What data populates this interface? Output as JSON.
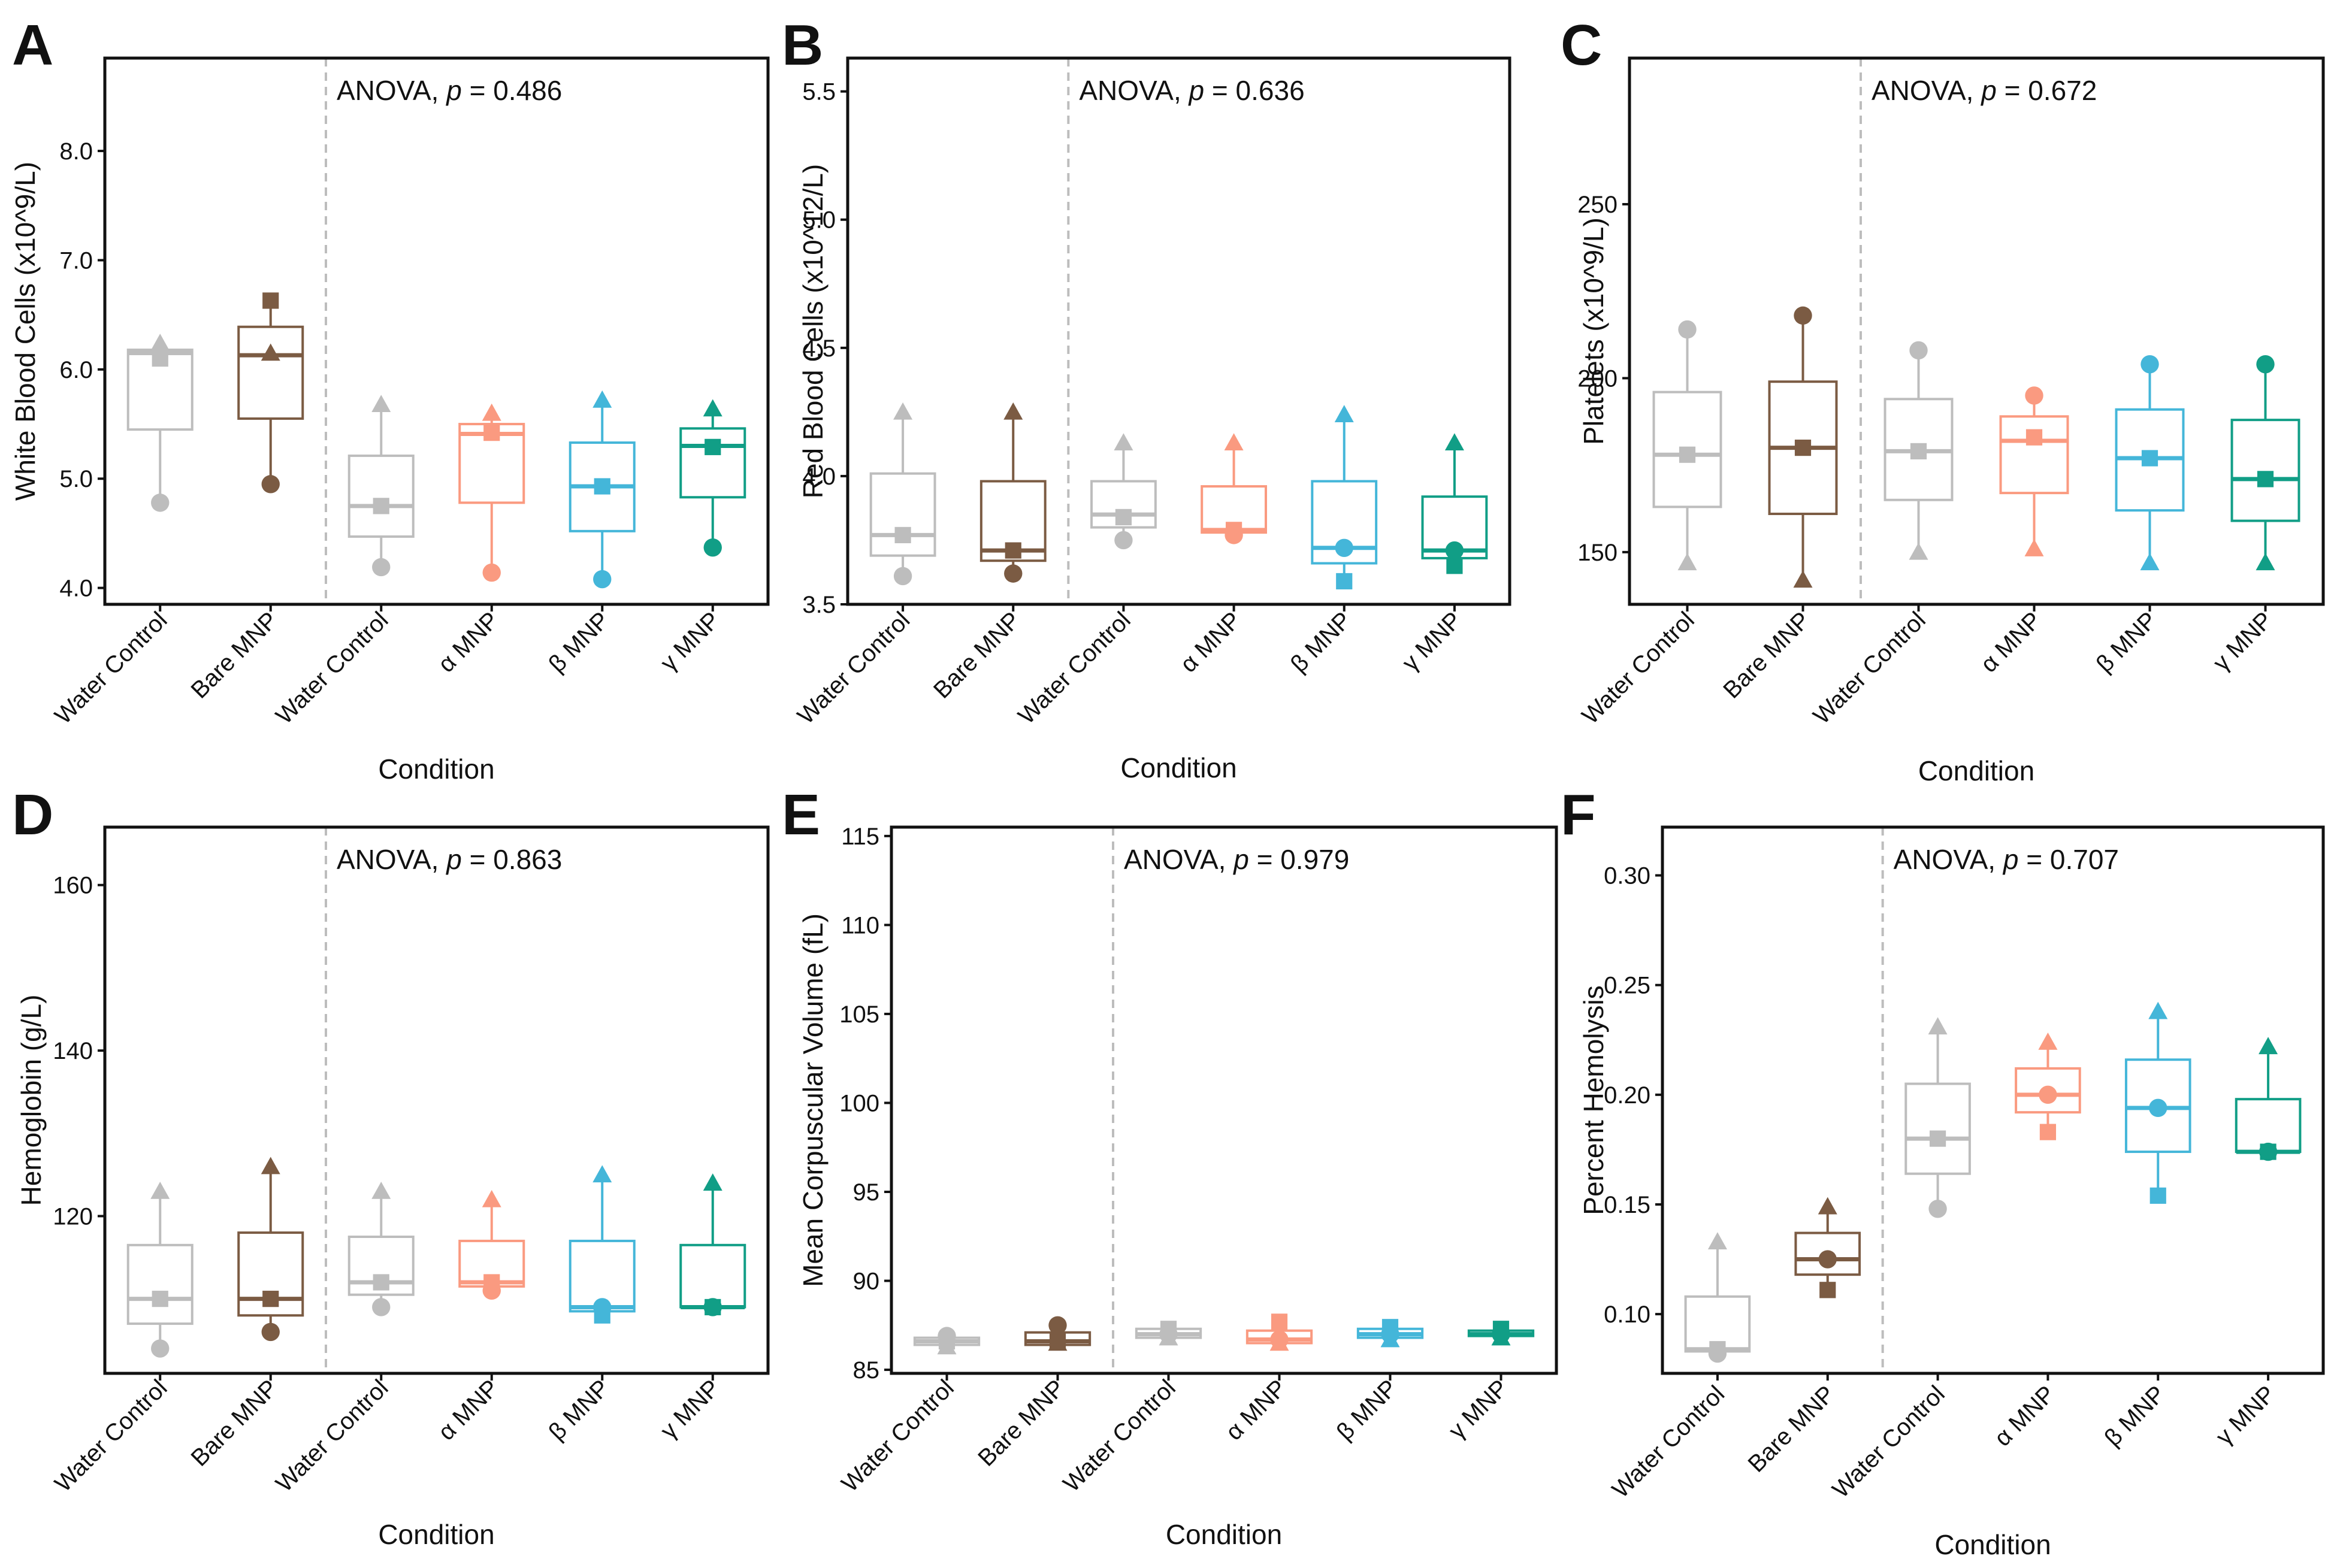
{
  "figure": {
    "x_axis_title": "Condition",
    "divider_style": "dashed grey line after second group",
    "colors": {
      "water_control": "#BDBDBD",
      "bare_mnp": "#7B5B43",
      "alpha_mnp": "#FA9A80",
      "beta_mnp": "#44B6D9",
      "gamma_mnp": "#119E86",
      "divider": "#BDBDBD"
    },
    "marker_shapes": [
      "triangle",
      "square",
      "circle"
    ]
  },
  "chart_data": [
    {
      "panel": "A",
      "type": "box",
      "anova_prefix": "ANOVA, ",
      "anova_p_symbol": "p",
      "anova_p_value": " = 0.486",
      "ylabel": "White Blood Cells (x10^9/L)",
      "xlabel": "Condition",
      "categories": [
        "Water Control",
        "Bare MNP",
        "Water Control",
        "α MNP",
        "β MNP",
        "γ MNP"
      ],
      "yticks": [
        4.0,
        5.0,
        6.0,
        7.0,
        8.0
      ],
      "ytick_labels": [
        "4.0",
        "5.0",
        "6.0",
        "7.0",
        "8.0"
      ],
      "ylim": [
        3.85,
        8.85
      ],
      "boxes": [
        {
          "q1": 5.45,
          "median": 6.15,
          "q3": 6.18,
          "lo": 4.8,
          "hi": 6.18,
          "triangle": 6.24,
          "square": 6.1,
          "circle": 4.78
        },
        {
          "q1": 5.55,
          "median": 6.13,
          "q3": 6.39,
          "lo": 4.97,
          "hi": 6.64,
          "triangle": 6.15,
          "square": 6.63,
          "circle": 4.95
        },
        {
          "q1": 4.47,
          "median": 4.75,
          "q3": 5.21,
          "lo": 4.2,
          "hi": 5.68,
          "triangle": 5.68,
          "square": 4.75,
          "circle": 4.19
        },
        {
          "q1": 4.78,
          "median": 5.41,
          "q3": 5.5,
          "lo": 4.16,
          "hi": 5.62,
          "triangle": 5.6,
          "square": 5.42,
          "circle": 4.14
        },
        {
          "q1": 4.52,
          "median": 4.93,
          "q3": 5.33,
          "lo": 4.1,
          "hi": 5.71,
          "triangle": 5.72,
          "square": 4.93,
          "circle": 4.08
        },
        {
          "q1": 4.83,
          "median": 5.3,
          "q3": 5.46,
          "lo": 4.38,
          "hi": 5.63,
          "triangle": 5.64,
          "square": 5.29,
          "circle": 4.37
        }
      ]
    },
    {
      "panel": "B",
      "type": "box",
      "anova_prefix": "ANOVA, ",
      "anova_p_symbol": "p",
      "anova_p_value": " = 0.636",
      "ylabel": "Red Blood Cells (x10^12/L)",
      "xlabel": "Condition",
      "categories": [
        "Water Control",
        "Bare MNP",
        "Water Control",
        "α MNP",
        "β MNP",
        "γ MNP"
      ],
      "yticks": [
        3.5,
        4.0,
        4.5,
        5.0,
        5.5
      ],
      "ytick_labels": [
        "3.5",
        "4.0",
        "4.5",
        "5.0",
        "5.5"
      ],
      "ylim": [
        3.5,
        5.63
      ],
      "boxes": [
        {
          "q1": 3.69,
          "median": 3.77,
          "q3": 4.01,
          "lo": 3.62,
          "hi": 4.25,
          "triangle": 4.25,
          "square": 3.77,
          "circle": 3.61
        },
        {
          "q1": 3.67,
          "median": 3.71,
          "q3": 3.98,
          "lo": 3.63,
          "hi": 4.24,
          "triangle": 4.25,
          "square": 3.71,
          "circle": 3.62
        },
        {
          "q1": 3.8,
          "median": 3.85,
          "q3": 3.98,
          "lo": 3.75,
          "hi": 4.12,
          "triangle": 4.13,
          "square": 3.84,
          "circle": 3.75
        },
        {
          "q1": 3.78,
          "median": 3.79,
          "q3": 3.96,
          "lo": 3.78,
          "hi": 4.12,
          "triangle": 4.13,
          "square": 3.79,
          "circle": 3.77
        },
        {
          "q1": 3.66,
          "median": 3.72,
          "q3": 3.98,
          "lo": 3.6,
          "hi": 4.23,
          "triangle": 4.24,
          "square": 3.59,
          "circle": 3.72
        },
        {
          "q1": 3.68,
          "median": 3.71,
          "q3": 3.92,
          "lo": 3.66,
          "hi": 4.12,
          "triangle": 4.13,
          "square": 3.65,
          "circle": 3.71
        }
      ]
    },
    {
      "panel": "C",
      "type": "box",
      "anova_prefix": "ANOVA, ",
      "anova_p_symbol": "p",
      "anova_p_value": " = 0.672",
      "ylabel": "Platelets (x10^9/L)",
      "xlabel": "Condition",
      "categories": [
        "Water Control",
        "Bare MNP",
        "Water Control",
        "α MNP",
        "β MNP",
        "γ MNP"
      ],
      "yticks": [
        150,
        200,
        250
      ],
      "ytick_labels": [
        "150",
        "200",
        "250"
      ],
      "ylim": [
        135,
        292
      ],
      "boxes": [
        {
          "q1": 163,
          "median": 178,
          "q3": 196,
          "lo": 147,
          "hi": 214,
          "triangle": 147,
          "square": 178,
          "circle": 214
        },
        {
          "q1": 161,
          "median": 180,
          "q3": 199,
          "lo": 142,
          "hi": 218,
          "triangle": 142,
          "square": 180,
          "circle": 218
        },
        {
          "q1": 165,
          "median": 179,
          "q3": 194,
          "lo": 150,
          "hi": 208,
          "triangle": 150,
          "square": 179,
          "circle": 208
        },
        {
          "q1": 167,
          "median": 182,
          "q3": 189,
          "lo": 151,
          "hi": 195,
          "triangle": 151,
          "square": 183,
          "circle": 195
        },
        {
          "q1": 162,
          "median": 177,
          "q3": 191,
          "lo": 147,
          "hi": 204,
          "triangle": 147,
          "square": 177,
          "circle": 204
        },
        {
          "q1": 159,
          "median": 171,
          "q3": 188,
          "lo": 147,
          "hi": 204,
          "triangle": 147,
          "square": 171,
          "circle": 204
        }
      ]
    },
    {
      "panel": "D",
      "type": "box",
      "anova_prefix": "ANOVA, ",
      "anova_p_symbol": "p",
      "anova_p_value": " = 0.863",
      "ylabel": "Hemoglobin (g/L)",
      "xlabel": "Condition",
      "categories": [
        "Water Control",
        "Bare MNP",
        "Water Control",
        "α MNP",
        "β MNP",
        "γ MNP"
      ],
      "yticks": [
        120,
        140,
        160
      ],
      "ytick_labels": [
        "120",
        "140",
        "160"
      ],
      "ylim": [
        101,
        167
      ],
      "boxes": [
        {
          "q1": 107,
          "median": 110,
          "q3": 116.5,
          "lo": 104,
          "hi": 123,
          "triangle": 123,
          "square": 110,
          "circle": 104
        },
        {
          "q1": 108,
          "median": 110,
          "q3": 118,
          "lo": 106,
          "hi": 126,
          "triangle": 126,
          "square": 110,
          "circle": 106
        },
        {
          "q1": 110.5,
          "median": 112,
          "q3": 117.5,
          "lo": 109,
          "hi": 123,
          "triangle": 123,
          "square": 112,
          "circle": 109
        },
        {
          "q1": 111.5,
          "median": 112,
          "q3": 117,
          "lo": 111,
          "hi": 122,
          "triangle": 122,
          "square": 112,
          "circle": 111
        },
        {
          "q1": 108.5,
          "median": 109,
          "q3": 117,
          "lo": 108,
          "hi": 125,
          "triangle": 125,
          "square": 108,
          "circle": 109
        },
        {
          "q1": 109,
          "median": 109,
          "q3": 116.5,
          "lo": 109,
          "hi": 124,
          "triangle": 124,
          "square": 109,
          "circle": 109
        }
      ]
    },
    {
      "panel": "E",
      "type": "box",
      "anova_prefix": "ANOVA, ",
      "anova_p_symbol": "p",
      "anova_p_value": " = 0.979",
      "ylabel": "Mean Corpuscular Volume (fL)",
      "xlabel": "Condition",
      "categories": [
        "Water Control",
        "Bare MNP",
        "Water Control",
        "α MNP",
        "β MNP",
        "γ MNP"
      ],
      "yticks": [
        85,
        90,
        95,
        100,
        105,
        110,
        115
      ],
      "ytick_labels": [
        "85",
        "90",
        "95",
        "100",
        "105",
        "110",
        "115"
      ],
      "ylim": [
        84.8,
        115.5
      ],
      "boxes": [
        {
          "q1": 86.4,
          "median": 86.6,
          "q3": 86.8,
          "lo": 86.2,
          "hi": 87.0,
          "triangle": 86.3,
          "square": 86.6,
          "circle": 86.9
        },
        {
          "q1": 86.4,
          "median": 86.6,
          "q3": 87.1,
          "lo": 86.4,
          "hi": 87.5,
          "triangle": 86.5,
          "square": 86.6,
          "circle": 87.5
        },
        {
          "q1": 86.8,
          "median": 87.0,
          "q3": 87.3,
          "lo": 86.7,
          "hi": 87.4,
          "triangle": 86.8,
          "square": 87.3,
          "circle": 87.0
        },
        {
          "q1": 86.5,
          "median": 86.7,
          "q3": 87.2,
          "lo": 86.4,
          "hi": 87.7,
          "triangle": 86.5,
          "square": 87.7,
          "circle": 86.7
        },
        {
          "q1": 86.8,
          "median": 87.0,
          "q3": 87.3,
          "lo": 86.6,
          "hi": 87.4,
          "triangle": 86.7,
          "square": 87.4,
          "circle": 87.0
        },
        {
          "q1": 86.9,
          "median": 87.0,
          "q3": 87.2,
          "lo": 86.8,
          "hi": 87.3,
          "triangle": 86.8,
          "square": 87.3,
          "circle": 87.0
        }
      ]
    },
    {
      "panel": "F",
      "type": "box",
      "anova_prefix": "ANOVA, ",
      "anova_p_symbol": "p",
      "anova_p_value": " = 0.707",
      "ylabel": "Percent Hemolysis",
      "xlabel": "Condition",
      "categories": [
        "Water Control",
        "Bare MNP",
        "Water Control",
        "α MNP",
        "β MNP",
        "γ MNP"
      ],
      "yticks": [
        0.1,
        0.15,
        0.2,
        0.25,
        0.3
      ],
      "ytick_labels": [
        "0.10",
        "0.15",
        "0.20",
        "0.25",
        "0.30"
      ],
      "ylim": [
        0.073,
        0.322
      ],
      "boxes": [
        {
          "q1": 0.083,
          "median": 0.084,
          "q3": 0.108,
          "lo": 0.083,
          "hi": 0.133,
          "triangle": 0.133,
          "square": 0.084,
          "circle": 0.082
        },
        {
          "q1": 0.118,
          "median": 0.125,
          "q3": 0.137,
          "lo": 0.111,
          "hi": 0.149,
          "triangle": 0.149,
          "square": 0.111,
          "circle": 0.125
        },
        {
          "q1": 0.164,
          "median": 0.18,
          "q3": 0.205,
          "lo": 0.149,
          "hi": 0.231,
          "triangle": 0.231,
          "square": 0.18,
          "circle": 0.148
        },
        {
          "q1": 0.192,
          "median": 0.2,
          "q3": 0.212,
          "lo": 0.184,
          "hi": 0.224,
          "triangle": 0.224,
          "square": 0.183,
          "circle": 0.2
        },
        {
          "q1": 0.174,
          "median": 0.194,
          "q3": 0.216,
          "lo": 0.154,
          "hi": 0.238,
          "triangle": 0.238,
          "square": 0.154,
          "circle": 0.194
        },
        {
          "q1": 0.174,
          "median": 0.174,
          "q3": 0.198,
          "lo": 0.174,
          "hi": 0.222,
          "triangle": 0.222,
          "square": 0.174,
          "circle": 0.174
        }
      ]
    }
  ]
}
